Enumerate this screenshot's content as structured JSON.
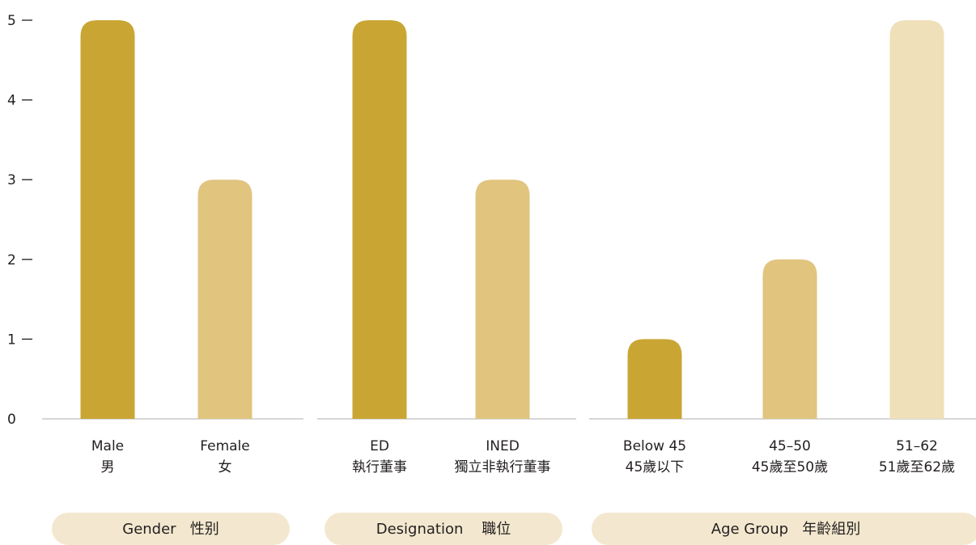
{
  "colors": {
    "dark": "#c9a634",
    "mid": "#e1c47e",
    "light": "#efe0ba",
    "pill": "#f3e8cf",
    "axis": "#bdbdbd",
    "text": "#231f20"
  },
  "chart_data": {
    "type": "bar",
    "ylim": [
      0,
      5
    ],
    "yticks": [
      0,
      1,
      2,
      3,
      4,
      5
    ],
    "groups": [
      {
        "title": "Gender   性别",
        "bars": [
          {
            "label": [
              "Male",
              "男"
            ],
            "value": 5,
            "color": "dark"
          },
          {
            "label": [
              "Female",
              "女"
            ],
            "value": 3,
            "color": "mid"
          }
        ]
      },
      {
        "title": "Designation    職位",
        "bars": [
          {
            "label": [
              "ED",
              "執行董事"
            ],
            "value": 5,
            "color": "dark"
          },
          {
            "label": [
              "INED",
              "獨立非執行董事"
            ],
            "value": 3,
            "color": "mid"
          }
        ]
      },
      {
        "title": "Age Group   年齡組別",
        "bars": [
          {
            "label": [
              "Below 45",
              "45歲以下"
            ],
            "value": 1,
            "color": "dark"
          },
          {
            "label": [
              "45–50",
              "45歲至50歲"
            ],
            "value": 2,
            "color": "mid"
          },
          {
            "label": [
              "51–62",
              "51歲至62歲"
            ],
            "value": 5,
            "color": "light"
          }
        ]
      }
    ]
  }
}
